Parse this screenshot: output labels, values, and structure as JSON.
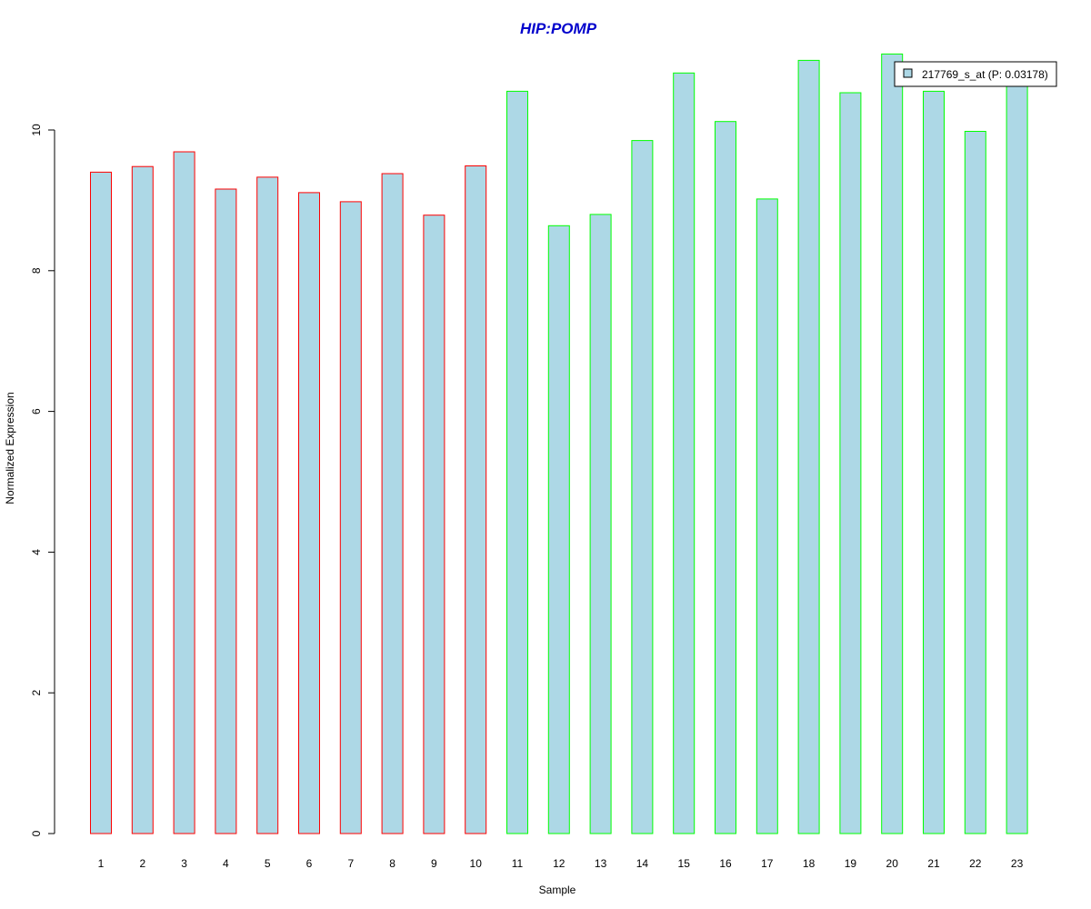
{
  "chart_data": {
    "type": "bar",
    "title": "HIP:POMP",
    "xlabel": "Sample",
    "ylabel": "Normalized Expression",
    "categories": [
      "1",
      "2",
      "3",
      "4",
      "5",
      "6",
      "7",
      "8",
      "9",
      "10",
      "11",
      "12",
      "13",
      "14",
      "15",
      "16",
      "17",
      "18",
      "19",
      "20",
      "21",
      "22",
      "23"
    ],
    "series": [
      {
        "name": "217769_s_at (P: 0.03178)",
        "values": [
          9.4,
          9.48,
          9.69,
          9.16,
          9.33,
          9.11,
          8.98,
          9.38,
          8.79,
          9.49,
          10.55,
          8.64,
          8.8,
          9.85,
          10.81,
          10.12,
          9.02,
          10.99,
          10.53,
          11.08,
          10.55,
          9.98,
          10.62
        ]
      }
    ],
    "group_colors": [
      "#ff0000",
      "#ff0000",
      "#ff0000",
      "#ff0000",
      "#ff0000",
      "#ff0000",
      "#ff0000",
      "#ff0000",
      "#ff0000",
      "#ff0000",
      "#00ff00",
      "#00ff00",
      "#00ff00",
      "#00ff00",
      "#00ff00",
      "#00ff00",
      "#00ff00",
      "#00ff00",
      "#00ff00",
      "#00ff00",
      "#00ff00",
      "#00ff00",
      "#00ff00"
    ],
    "bar_fill": "#add8e6",
    "title_color": "#0000cc",
    "yticks": [
      "0",
      "2",
      "4",
      "6",
      "8",
      "10"
    ],
    "ylim": [
      0,
      11.2
    ],
    "grid": false,
    "legend_position": "top-right"
  }
}
